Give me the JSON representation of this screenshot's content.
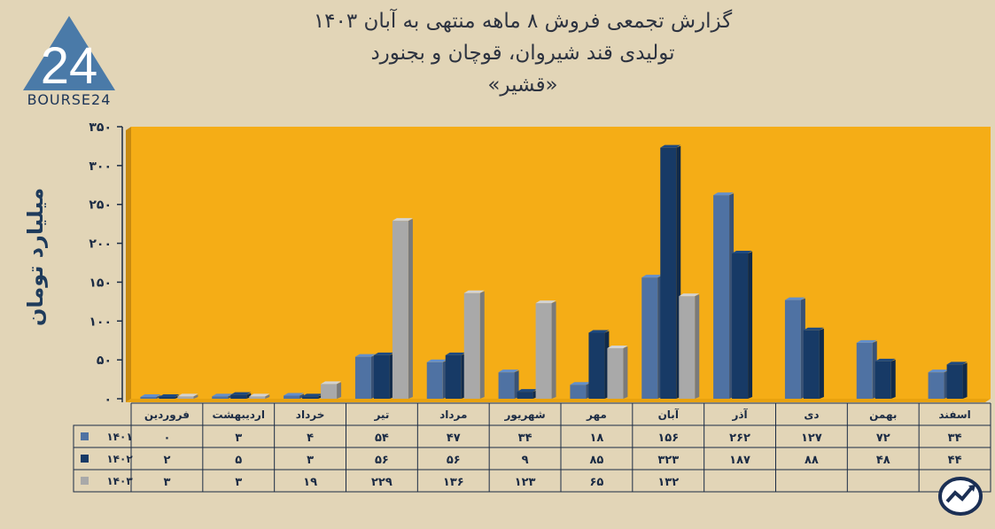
{
  "title": {
    "line1": "گزارش تجمعی فروش ۸ ماهه منتهی به آبان ۱۴۰۳",
    "line2": "تولیدی قند شیروان، قوچان و بجنورد",
    "line3": "«قشیر»"
  },
  "logo": {
    "text": "BOURSE24",
    "mark": "24"
  },
  "badge_icon": "trend-chart-icon",
  "chart_data": {
    "type": "bar",
    "ylabel": "میلیارد تومان",
    "ylim": [
      0,
      350
    ],
    "yticks": [
      "۰",
      "۵۰",
      "۱۰۰",
      "۱۵۰",
      "۲۰۰",
      "۲۵۰",
      "۳۰۰",
      "۳۵۰"
    ],
    "categories": [
      "فروردین",
      "اردیبهشت",
      "خرداد",
      "تیر",
      "مرداد",
      "شهریور",
      "مهر",
      "آبان",
      "آذر",
      "دی",
      "بهمن",
      "اسفند"
    ],
    "series": [
      {
        "name": "۱۴۰۱",
        "color": "#4f72a3",
        "values": [
          0,
          3,
          4,
          54,
          47,
          34,
          18,
          156,
          262,
          127,
          72,
          34
        ],
        "labels": [
          "۰",
          "۳",
          "۴",
          "۵۴",
          "۴۷",
          "۳۴",
          "۱۸",
          "۱۵۶",
          "۲۶۲",
          "۱۲۷",
          "۷۲",
          "۳۴"
        ]
      },
      {
        "name": "۱۴۰۲",
        "color": "#173a66",
        "values": [
          2,
          5,
          3,
          56,
          56,
          9,
          85,
          323,
          187,
          88,
          48,
          44
        ],
        "labels": [
          "۲",
          "۵",
          "۳",
          "۵۶",
          "۵۶",
          "۹",
          "۸۵",
          "۳۲۳",
          "۱۸۷",
          "۸۸",
          "۴۸",
          "۴۴"
        ]
      },
      {
        "name": "۱۴۰۳",
        "color": "#a9a9a9",
        "values": [
          3,
          3,
          19,
          229,
          136,
          123,
          65,
          132,
          null,
          null,
          null,
          null
        ],
        "labels": [
          "۳",
          "۳",
          "۱۹",
          "۲۲۹",
          "۱۳۶",
          "۱۲۳",
          "۶۵",
          "۱۳۲",
          "",
          "",
          "",
          ""
        ]
      }
    ],
    "plot_background": "#f5ad16",
    "legend": "data-table-below"
  }
}
